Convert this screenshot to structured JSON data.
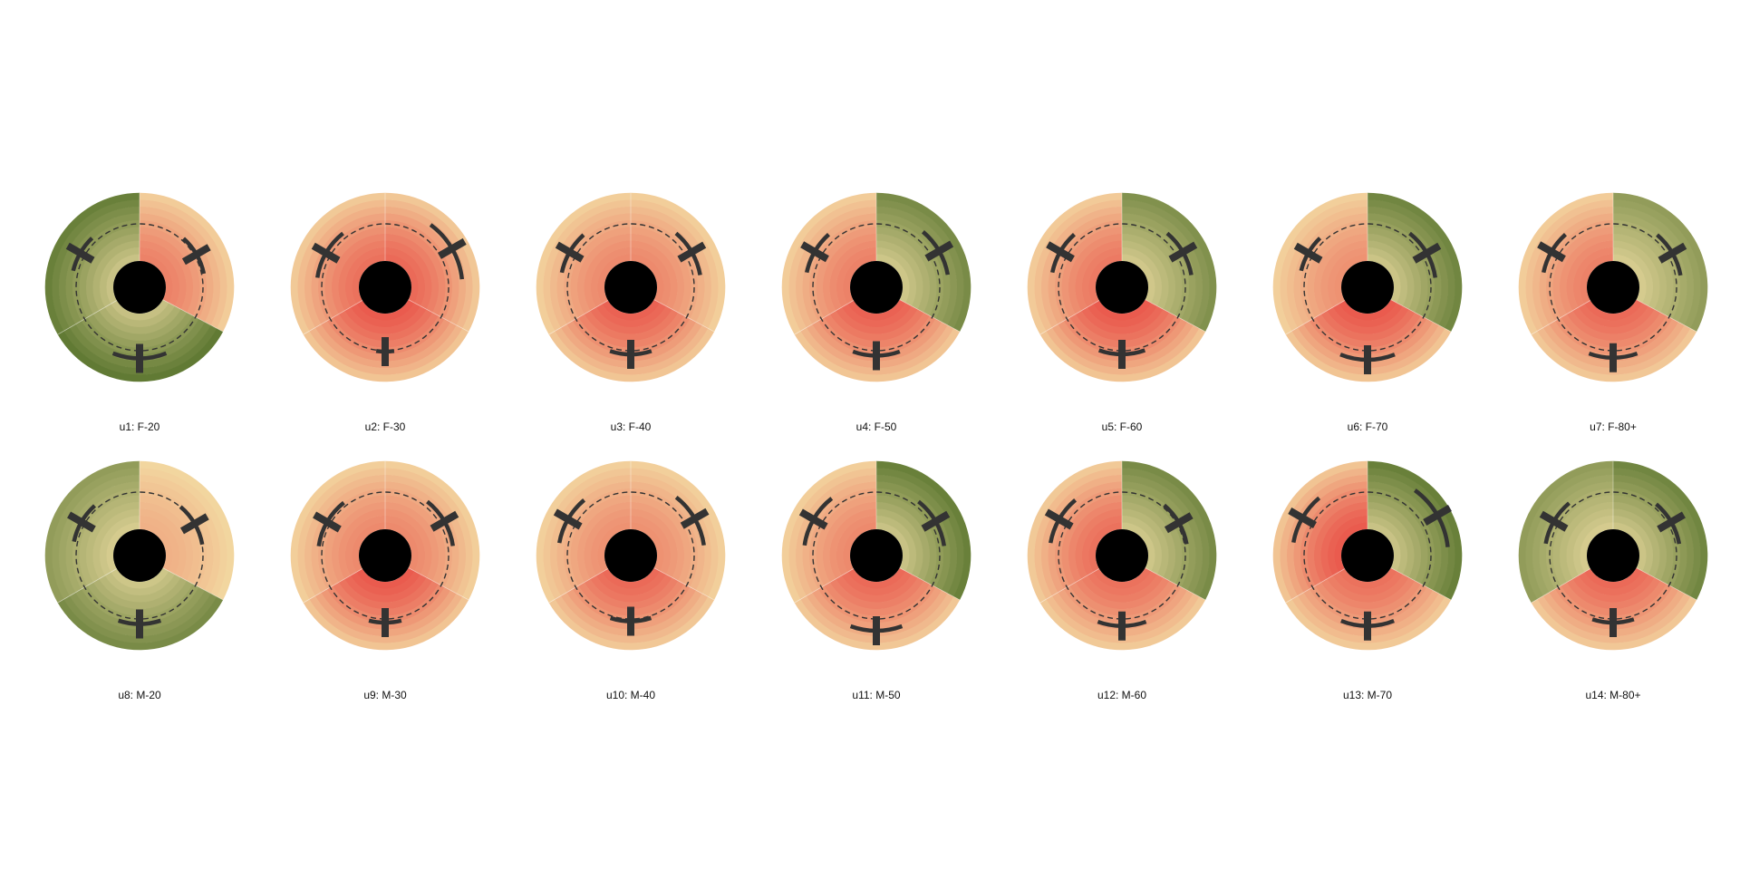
{
  "chart_data": {
    "type": "radial-glyph-grid",
    "title": "",
    "colors": {
      "low": "#4b6b23",
      "mid": "#f3e0a6",
      "high": "#e8413d",
      "hole": "#000000",
      "marker": "#333333"
    },
    "notes": "Each glyph: three angular sectors (right, bottom, left); color encodes value from green (negative) through cream to red (positive); a dashed reference ring; each sector carries an error arc with a tick at its mean radius.",
    "panels": [
      {
        "label": "u1: F-20",
        "sectors": [
          {
            "value": 0.6,
            "radius": 0.58,
            "spread": 18
          },
          {
            "value": -0.9,
            "radius": 0.66,
            "spread": 22
          },
          {
            "value": -0.85,
            "radius": 0.62,
            "spread": 16
          }
        ]
      },
      {
        "label": "u2: F-30",
        "sectors": [
          {
            "value": 0.75,
            "radius": 0.75,
            "spread": 24
          },
          {
            "value": 0.85,
            "radius": 0.56,
            "spread": 8
          },
          {
            "value": 0.7,
            "radius": 0.62,
            "spread": 22
          }
        ]
      },
      {
        "label": "u3: F-40",
        "sectors": [
          {
            "value": 0.55,
            "radius": 0.65,
            "spread": 20
          },
          {
            "value": 0.8,
            "radius": 0.6,
            "spread": 18
          },
          {
            "value": 0.55,
            "radius": 0.65,
            "spread": 18
          }
        ]
      },
      {
        "label": "u4: F-50",
        "sectors": [
          {
            "value": -0.75,
            "radius": 0.68,
            "spread": 20
          },
          {
            "value": 0.8,
            "radius": 0.62,
            "spread": 20
          },
          {
            "value": 0.6,
            "radius": 0.66,
            "spread": 18
          }
        ]
      },
      {
        "label": "u5: F-60",
        "sectors": [
          {
            "value": -0.7,
            "radius": 0.65,
            "spread": 20
          },
          {
            "value": 0.85,
            "radius": 0.6,
            "spread": 20
          },
          {
            "value": 0.65,
            "radius": 0.66,
            "spread": 18
          }
        ]
      },
      {
        "label": "u6: F-70",
        "sectors": [
          {
            "value": -0.8,
            "radius": 0.62,
            "spread": 22
          },
          {
            "value": 0.85,
            "radius": 0.68,
            "spread": 22
          },
          {
            "value": 0.5,
            "radius": 0.62,
            "spread": 16
          }
        ]
      },
      {
        "label": "u7: F-80+",
        "sectors": [
          {
            "value": -0.6,
            "radius": 0.62,
            "spread": 20
          },
          {
            "value": 0.75,
            "radius": 0.65,
            "spread": 20
          },
          {
            "value": 0.6,
            "radius": 0.66,
            "spread": 18
          }
        ]
      },
      {
        "label": "u8: M-20",
        "sectors": [
          {
            "value": 0.3,
            "radius": 0.55,
            "spread": 20
          },
          {
            "value": -0.75,
            "radius": 0.62,
            "spread": 18
          },
          {
            "value": -0.6,
            "radius": 0.6,
            "spread": 18
          }
        ]
      },
      {
        "label": "u9: M-30",
        "sectors": [
          {
            "value": 0.55,
            "radius": 0.62,
            "spread": 22
          },
          {
            "value": 0.85,
            "radius": 0.6,
            "spread": 14
          },
          {
            "value": 0.55,
            "radius": 0.6,
            "spread": 22
          }
        ]
      },
      {
        "label": "u10: M-40",
        "sectors": [
          {
            "value": 0.5,
            "radius": 0.7,
            "spread": 22
          },
          {
            "value": 0.75,
            "radius": 0.58,
            "spread": 18
          },
          {
            "value": 0.5,
            "radius": 0.68,
            "spread": 20
          }
        ]
      },
      {
        "label": "u11: M-50",
        "sectors": [
          {
            "value": -0.85,
            "radius": 0.62,
            "spread": 22
          },
          {
            "value": 0.75,
            "radius": 0.72,
            "spread": 20
          },
          {
            "value": 0.55,
            "radius": 0.68,
            "spread": 22
          }
        ]
      },
      {
        "label": "u12: M-60",
        "sectors": [
          {
            "value": -0.75,
            "radius": 0.58,
            "spread": 20
          },
          {
            "value": 0.7,
            "radius": 0.65,
            "spread": 20
          },
          {
            "value": 0.7,
            "radius": 0.68,
            "spread": 20
          }
        ]
      },
      {
        "label": "u13: M-70",
        "sectors": [
          {
            "value": -0.85,
            "radius": 0.8,
            "spread": 24
          },
          {
            "value": 0.7,
            "radius": 0.65,
            "spread": 22
          },
          {
            "value": 0.85,
            "radius": 0.72,
            "spread": 20
          }
        ]
      },
      {
        "label": "u14: M-80+",
        "sectors": [
          {
            "value": -0.8,
            "radius": 0.6,
            "spread": 20
          },
          {
            "value": 0.75,
            "radius": 0.6,
            "spread": 18
          },
          {
            "value": -0.6,
            "radius": 0.62,
            "spread": 20
          }
        ]
      }
    ]
  }
}
